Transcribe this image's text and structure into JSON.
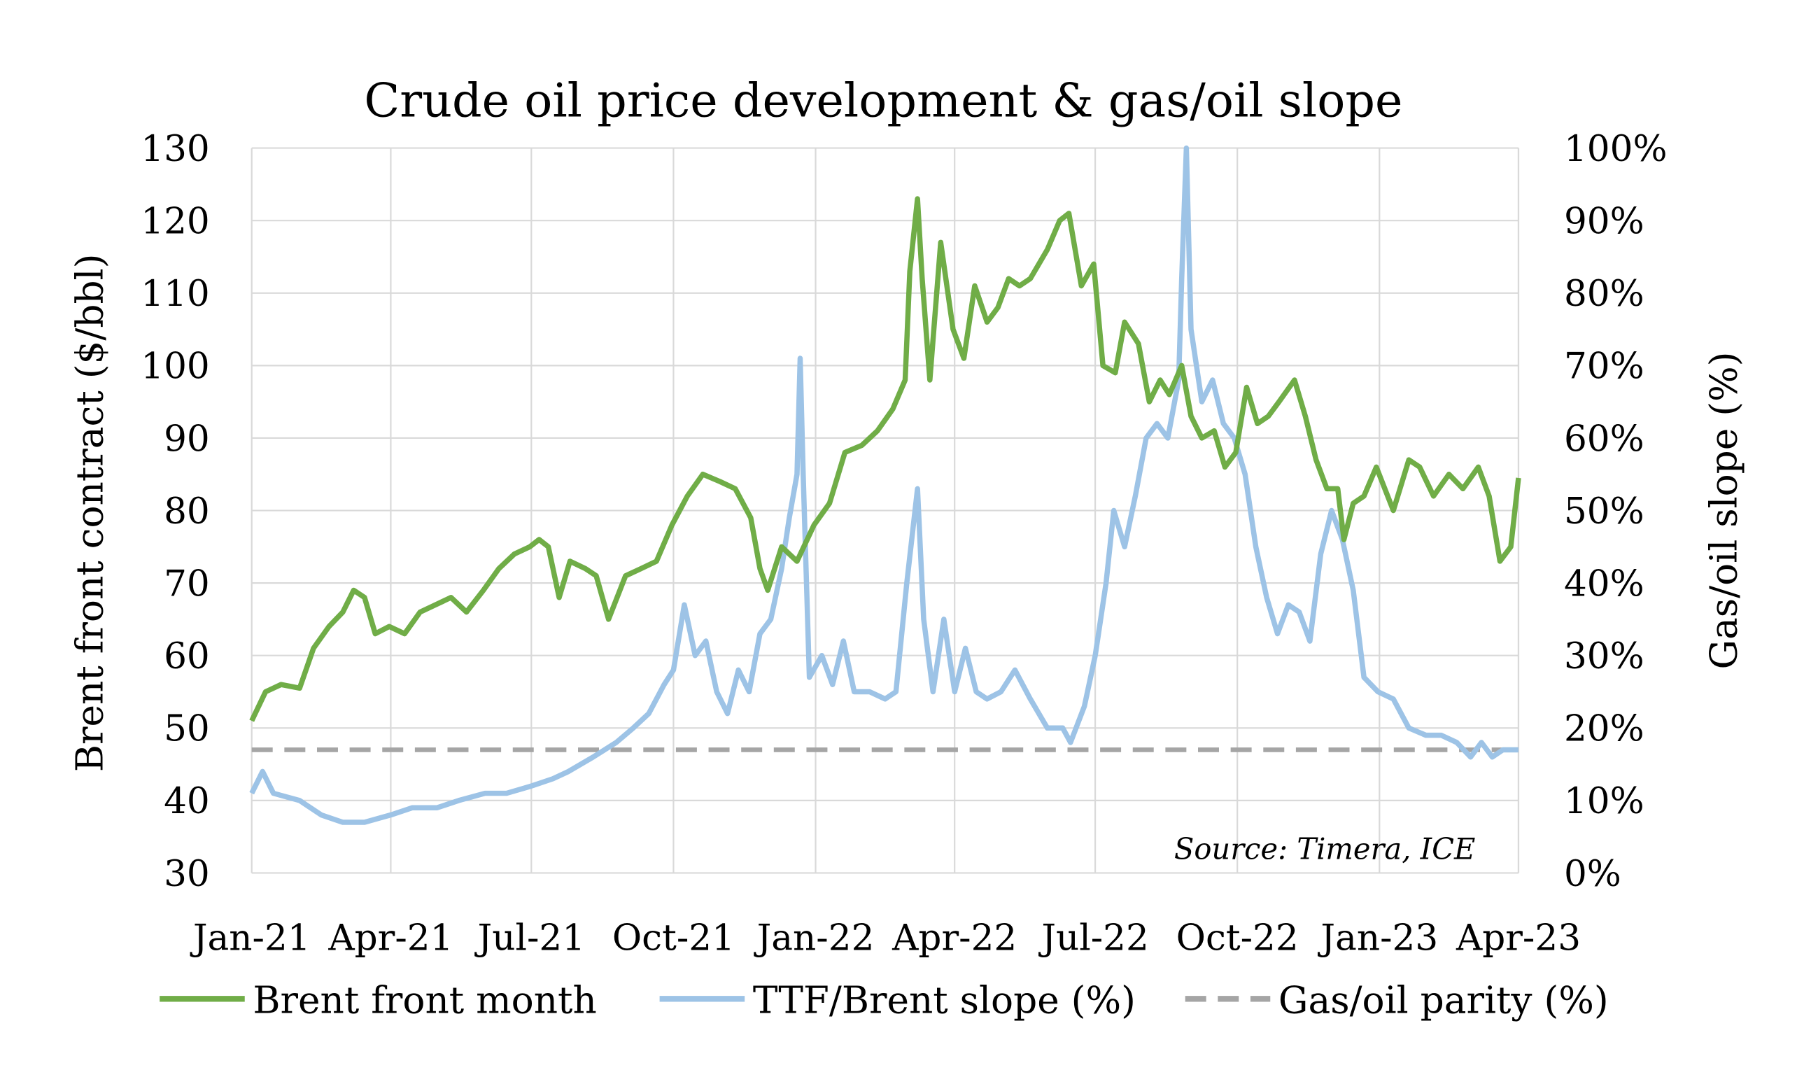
{
  "chart_data": {
    "type": "line",
    "title": "Crude oil price development & gas/oil slope",
    "ylabel": "Brent front contract ($/bbl)",
    "y2label": "Gas/oil slope (%)",
    "ylim": [
      30,
      130
    ],
    "y2lim": [
      0,
      100
    ],
    "xlim": [
      "2021-01-01",
      "2023-04-01"
    ],
    "yticks": [
      "30",
      "40",
      "50",
      "60",
      "70",
      "80",
      "90",
      "100",
      "110",
      "120",
      "130"
    ],
    "y2ticks": [
      "0%",
      "10%",
      "20%",
      "30%",
      "40%",
      "50%",
      "60%",
      "70%",
      "80%",
      "90%",
      "100%"
    ],
    "xticks": [
      {
        "date": "2021-01-01",
        "label": "Jan-21"
      },
      {
        "date": "2021-04-01",
        "label": "Apr-21"
      },
      {
        "date": "2021-07-01",
        "label": "Jul-21"
      },
      {
        "date": "2021-10-01",
        "label": "Oct-21"
      },
      {
        "date": "2022-01-01",
        "label": "Jan-22"
      },
      {
        "date": "2022-04-01",
        "label": "Apr-22"
      },
      {
        "date": "2022-07-01",
        "label": "Jul-22"
      },
      {
        "date": "2022-10-01",
        "label": "Oct-22"
      },
      {
        "date": "2023-01-01",
        "label": "Jan-23"
      },
      {
        "date": "2023-04-01",
        "label": "Apr-23"
      }
    ],
    "grid": true,
    "legend_placement": "bottom",
    "annotation": "Source: Timera, ICE",
    "series": [
      {
        "name": "Brent front month",
        "axis": "left",
        "color": "#70ad47",
        "style": "solid",
        "points": [
          [
            "2021-01-01",
            51
          ],
          [
            "2021-01-10",
            55
          ],
          [
            "2021-01-20",
            56
          ],
          [
            "2021-02-01",
            55.5
          ],
          [
            "2021-02-10",
            61
          ],
          [
            "2021-02-20",
            64
          ],
          [
            "2021-03-01",
            66
          ],
          [
            "2021-03-08",
            69
          ],
          [
            "2021-03-15",
            68
          ],
          [
            "2021-03-22",
            63
          ],
          [
            "2021-03-31",
            64
          ],
          [
            "2021-04-10",
            63
          ],
          [
            "2021-04-20",
            66
          ],
          [
            "2021-04-30",
            67
          ],
          [
            "2021-05-10",
            68
          ],
          [
            "2021-05-20",
            66
          ],
          [
            "2021-05-31",
            69
          ],
          [
            "2021-06-10",
            72
          ],
          [
            "2021-06-20",
            74
          ],
          [
            "2021-06-30",
            75
          ],
          [
            "2021-07-06",
            76
          ],
          [
            "2021-07-12",
            75
          ],
          [
            "2021-07-19",
            68
          ],
          [
            "2021-07-26",
            73
          ],
          [
            "2021-08-05",
            72
          ],
          [
            "2021-08-12",
            71
          ],
          [
            "2021-08-20",
            65
          ],
          [
            "2021-08-31",
            71
          ],
          [
            "2021-09-10",
            72
          ],
          [
            "2021-09-20",
            73
          ],
          [
            "2021-09-30",
            78
          ],
          [
            "2021-10-10",
            82
          ],
          [
            "2021-10-20",
            85
          ],
          [
            "2021-10-31",
            84
          ],
          [
            "2021-11-10",
            83
          ],
          [
            "2021-11-20",
            79
          ],
          [
            "2021-11-26",
            72
          ],
          [
            "2021-12-01",
            69
          ],
          [
            "2021-12-10",
            75
          ],
          [
            "2021-12-20",
            73
          ],
          [
            "2021-12-31",
            78
          ],
          [
            "2022-01-10",
            81
          ],
          [
            "2022-01-20",
            88
          ],
          [
            "2022-01-31",
            89
          ],
          [
            "2022-02-10",
            91
          ],
          [
            "2022-02-20",
            94
          ],
          [
            "2022-02-28",
            98
          ],
          [
            "2022-03-03",
            113
          ],
          [
            "2022-03-08",
            123
          ],
          [
            "2022-03-11",
            112
          ],
          [
            "2022-03-16",
            98
          ],
          [
            "2022-03-23",
            117
          ],
          [
            "2022-03-31",
            105
          ],
          [
            "2022-04-07",
            101
          ],
          [
            "2022-04-14",
            111
          ],
          [
            "2022-04-22",
            106
          ],
          [
            "2022-04-29",
            108
          ],
          [
            "2022-05-06",
            112
          ],
          [
            "2022-05-13",
            111
          ],
          [
            "2022-05-20",
            112
          ],
          [
            "2022-05-31",
            116
          ],
          [
            "2022-06-08",
            120
          ],
          [
            "2022-06-14",
            121
          ],
          [
            "2022-06-22",
            111
          ],
          [
            "2022-06-30",
            114
          ],
          [
            "2022-07-06",
            100
          ],
          [
            "2022-07-14",
            99
          ],
          [
            "2022-07-20",
            106
          ],
          [
            "2022-07-29",
            103
          ],
          [
            "2022-08-05",
            95
          ],
          [
            "2022-08-12",
            98
          ],
          [
            "2022-08-18",
            96
          ],
          [
            "2022-08-26",
            100
          ],
          [
            "2022-09-01",
            93
          ],
          [
            "2022-09-08",
            90
          ],
          [
            "2022-09-16",
            91
          ],
          [
            "2022-09-23",
            86
          ],
          [
            "2022-09-30",
            88
          ],
          [
            "2022-10-07",
            97
          ],
          [
            "2022-10-14",
            92
          ],
          [
            "2022-10-21",
            93
          ],
          [
            "2022-10-28",
            95
          ],
          [
            "2022-11-07",
            98
          ],
          [
            "2022-11-14",
            93
          ],
          [
            "2022-11-21",
            87
          ],
          [
            "2022-11-28",
            83
          ],
          [
            "2022-12-05",
            83
          ],
          [
            "2022-12-09",
            76
          ],
          [
            "2022-12-15",
            81
          ],
          [
            "2022-12-22",
            82
          ],
          [
            "2022-12-30",
            86
          ],
          [
            "2023-01-10",
            80
          ],
          [
            "2023-01-20",
            87
          ],
          [
            "2023-01-27",
            86
          ],
          [
            "2023-02-05",
            82
          ],
          [
            "2023-02-15",
            85
          ],
          [
            "2023-02-24",
            83
          ],
          [
            "2023-03-06",
            86
          ],
          [
            "2023-03-13",
            82
          ],
          [
            "2023-03-20",
            73
          ],
          [
            "2023-03-27",
            75
          ],
          [
            "2023-04-01",
            84.5
          ]
        ]
      },
      {
        "name": "TTF/Brent slope (%)",
        "axis": "right",
        "color": "#9dc3e6",
        "style": "solid",
        "points": [
          [
            "2021-01-01",
            11
          ],
          [
            "2021-01-08",
            14
          ],
          [
            "2021-01-15",
            11
          ],
          [
            "2021-02-01",
            10
          ],
          [
            "2021-02-15",
            8
          ],
          [
            "2021-03-01",
            7
          ],
          [
            "2021-03-15",
            7
          ],
          [
            "2021-04-01",
            8
          ],
          [
            "2021-04-15",
            9
          ],
          [
            "2021-05-01",
            9
          ],
          [
            "2021-05-15",
            10
          ],
          [
            "2021-06-01",
            11
          ],
          [
            "2021-06-15",
            11
          ],
          [
            "2021-07-01",
            12
          ],
          [
            "2021-07-15",
            13
          ],
          [
            "2021-07-25",
            14
          ],
          [
            "2021-08-10",
            16
          ],
          [
            "2021-08-25",
            18
          ],
          [
            "2021-09-05",
            20
          ],
          [
            "2021-09-15",
            22
          ],
          [
            "2021-09-25",
            26
          ],
          [
            "2021-10-01",
            28
          ],
          [
            "2021-10-08",
            37
          ],
          [
            "2021-10-15",
            30
          ],
          [
            "2021-10-22",
            32
          ],
          [
            "2021-10-29",
            25
          ],
          [
            "2021-11-05",
            22
          ],
          [
            "2021-11-12",
            28
          ],
          [
            "2021-11-19",
            25
          ],
          [
            "2021-11-26",
            33
          ],
          [
            "2021-12-03",
            35
          ],
          [
            "2021-12-10",
            42
          ],
          [
            "2021-12-15",
            49
          ],
          [
            "2021-12-20",
            55
          ],
          [
            "2021-12-22",
            71
          ],
          [
            "2021-12-24",
            55
          ],
          [
            "2021-12-28",
            27
          ],
          [
            "2022-01-05",
            30
          ],
          [
            "2022-01-12",
            26
          ],
          [
            "2022-01-19",
            32
          ],
          [
            "2022-01-26",
            25
          ],
          [
            "2022-02-05",
            25
          ],
          [
            "2022-02-15",
            24
          ],
          [
            "2022-02-22",
            25
          ],
          [
            "2022-03-01",
            40
          ],
          [
            "2022-03-08",
            53
          ],
          [
            "2022-03-12",
            35
          ],
          [
            "2022-03-18",
            25
          ],
          [
            "2022-03-25",
            35
          ],
          [
            "2022-04-01",
            25
          ],
          [
            "2022-04-08",
            31
          ],
          [
            "2022-04-15",
            25
          ],
          [
            "2022-04-22",
            24
          ],
          [
            "2022-05-01",
            25
          ],
          [
            "2022-05-10",
            28
          ],
          [
            "2022-05-20",
            24
          ],
          [
            "2022-05-31",
            20
          ],
          [
            "2022-06-10",
            20
          ],
          [
            "2022-06-15",
            18
          ],
          [
            "2022-06-24",
            23
          ],
          [
            "2022-07-01",
            30
          ],
          [
            "2022-07-08",
            40
          ],
          [
            "2022-07-13",
            50
          ],
          [
            "2022-07-20",
            45
          ],
          [
            "2022-07-27",
            52
          ],
          [
            "2022-08-03",
            60
          ],
          [
            "2022-08-10",
            62
          ],
          [
            "2022-08-17",
            60
          ],
          [
            "2022-08-24",
            68
          ],
          [
            "2022-08-26",
            82
          ],
          [
            "2022-08-29",
            100
          ],
          [
            "2022-09-01",
            75
          ],
          [
            "2022-09-08",
            65
          ],
          [
            "2022-09-15",
            68
          ],
          [
            "2022-09-22",
            62
          ],
          [
            "2022-09-29",
            60
          ],
          [
            "2022-10-06",
            55
          ],
          [
            "2022-10-13",
            45
          ],
          [
            "2022-10-20",
            38
          ],
          [
            "2022-10-27",
            33
          ],
          [
            "2022-11-03",
            37
          ],
          [
            "2022-11-10",
            36
          ],
          [
            "2022-11-17",
            32
          ],
          [
            "2022-11-24",
            44
          ],
          [
            "2022-12-01",
            50
          ],
          [
            "2022-12-08",
            46
          ],
          [
            "2022-12-15",
            39
          ],
          [
            "2022-12-22",
            27
          ],
          [
            "2022-12-31",
            25
          ],
          [
            "2023-01-10",
            24
          ],
          [
            "2023-01-20",
            20
          ],
          [
            "2023-01-31",
            19
          ],
          [
            "2023-02-10",
            19
          ],
          [
            "2023-02-20",
            18
          ],
          [
            "2023-03-01",
            16
          ],
          [
            "2023-03-08",
            18
          ],
          [
            "2023-03-15",
            16
          ],
          [
            "2023-03-22",
            17
          ],
          [
            "2023-04-01",
            17
          ]
        ]
      },
      {
        "name": "Gas/oil parity (%)",
        "axis": "right",
        "color": "#a5a5a5",
        "style": "dashed",
        "points": [
          [
            "2021-01-01",
            17
          ],
          [
            "2023-04-01",
            17
          ]
        ]
      }
    ]
  }
}
